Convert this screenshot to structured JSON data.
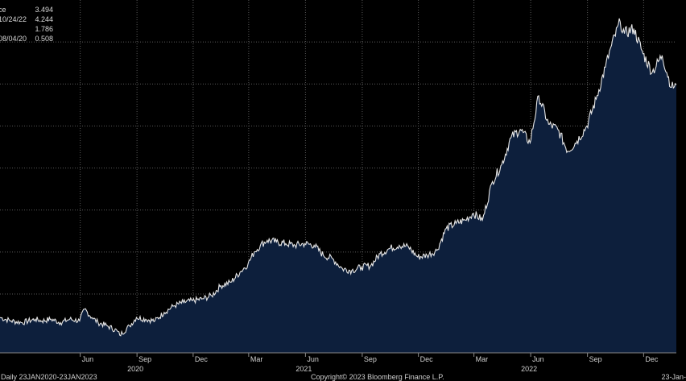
{
  "legend": [
    {
      "label": "ce",
      "value": "3.494"
    },
    {
      "label": "10/24/22",
      "value": "4.244"
    },
    {
      "label": "",
      "value": "1.786"
    },
    {
      "label": "08/04/20",
      "value": "0.508"
    }
  ],
  "footer": {
    "left": ": Daily 23JAN2020-23JAN2023",
    "center": "Copyright© 2023 Bloomberg Finance L.P.",
    "right": "23-Jan-"
  },
  "colors": {
    "background": "#000000",
    "area_fill": "#0d1f3c",
    "line": "#e6e6e6",
    "grid": "#5a5a5a"
  },
  "chart_data": {
    "type": "area",
    "x_range": [
      "2020-01-23",
      "2023-01-23"
    ],
    "ylim": [
      0.3,
      4.5
    ],
    "grid": true,
    "month_ticks": [
      {
        "date": "2020-06-01",
        "label": "Jun"
      },
      {
        "date": "2020-09-01",
        "label": "Sep"
      },
      {
        "date": "2020-12-01",
        "label": "Dec"
      },
      {
        "date": "2021-03-01",
        "label": "Mar"
      },
      {
        "date": "2021-06-01",
        "label": "Jun"
      },
      {
        "date": "2021-09-01",
        "label": "Sep"
      },
      {
        "date": "2021-12-01",
        "label": "Dec"
      },
      {
        "date": "2022-03-01",
        "label": "Mar"
      },
      {
        "date": "2022-06-01",
        "label": "Jun"
      },
      {
        "date": "2022-09-01",
        "label": "Sep"
      },
      {
        "date": "2022-12-01",
        "label": "Dec"
      }
    ],
    "year_labels": [
      {
        "date": "2020-09-01",
        "label": "2020"
      },
      {
        "date": "2021-06-01",
        "label": "2021"
      },
      {
        "date": "2022-06-01",
        "label": "2022"
      }
    ],
    "x": [
      "2020-01-23",
      "2020-02-10",
      "2020-02-28",
      "2020-03-20",
      "2020-03-31",
      "2020-04-15",
      "2020-04-30",
      "2020-05-15",
      "2020-05-31",
      "2020-06-08",
      "2020-06-20",
      "2020-06-30",
      "2020-07-15",
      "2020-07-31",
      "2020-08-04",
      "2020-08-20",
      "2020-08-31",
      "2020-09-15",
      "2020-09-30",
      "2020-10-15",
      "2020-10-31",
      "2020-11-15",
      "2020-11-30",
      "2020-12-15",
      "2020-12-31",
      "2021-01-15",
      "2021-01-31",
      "2021-02-15",
      "2021-02-28",
      "2021-03-10",
      "2021-03-20",
      "2021-03-31",
      "2021-04-15",
      "2021-04-30",
      "2021-05-15",
      "2021-05-31",
      "2021-06-15",
      "2021-06-30",
      "2021-07-15",
      "2021-07-31",
      "2021-08-15",
      "2021-08-31",
      "2021-09-15",
      "2021-09-30",
      "2021-10-15",
      "2021-10-31",
      "2021-11-15",
      "2021-11-30",
      "2021-12-15",
      "2021-12-31",
      "2022-01-15",
      "2022-01-31",
      "2022-02-15",
      "2022-02-28",
      "2022-03-15",
      "2022-03-31",
      "2022-04-15",
      "2022-04-30",
      "2022-05-15",
      "2022-05-31",
      "2022-06-14",
      "2022-06-30",
      "2022-07-15",
      "2022-07-31",
      "2022-08-15",
      "2022-08-31",
      "2022-09-15",
      "2022-09-30",
      "2022-10-10",
      "2022-10-24",
      "2022-10-31",
      "2022-11-15",
      "2022-11-30",
      "2022-12-15",
      "2022-12-31",
      "2023-01-15",
      "2023-01-23"
    ],
    "values": [
      0.72,
      0.68,
      0.66,
      0.7,
      0.68,
      0.7,
      0.66,
      0.7,
      0.68,
      0.82,
      0.72,
      0.66,
      0.62,
      0.56,
      0.51,
      0.62,
      0.72,
      0.7,
      0.68,
      0.78,
      0.86,
      0.9,
      0.92,
      0.94,
      0.98,
      1.1,
      1.14,
      1.26,
      1.36,
      1.5,
      1.58,
      1.64,
      1.62,
      1.6,
      1.58,
      1.6,
      1.58,
      1.46,
      1.42,
      1.3,
      1.28,
      1.32,
      1.34,
      1.48,
      1.54,
      1.58,
      1.56,
      1.44,
      1.46,
      1.52,
      1.78,
      1.84,
      1.88,
      1.96,
      1.88,
      2.34,
      2.54,
      2.86,
      2.96,
      2.8,
      3.36,
      3.02,
      2.96,
      2.7,
      2.82,
      3.0,
      3.32,
      3.7,
      3.96,
      4.24,
      4.1,
      4.16,
      3.86,
      3.64,
      3.84,
      3.46,
      3.49
    ],
    "series": [
      {
        "name": "",
        "values_ref": "values"
      }
    ]
  }
}
